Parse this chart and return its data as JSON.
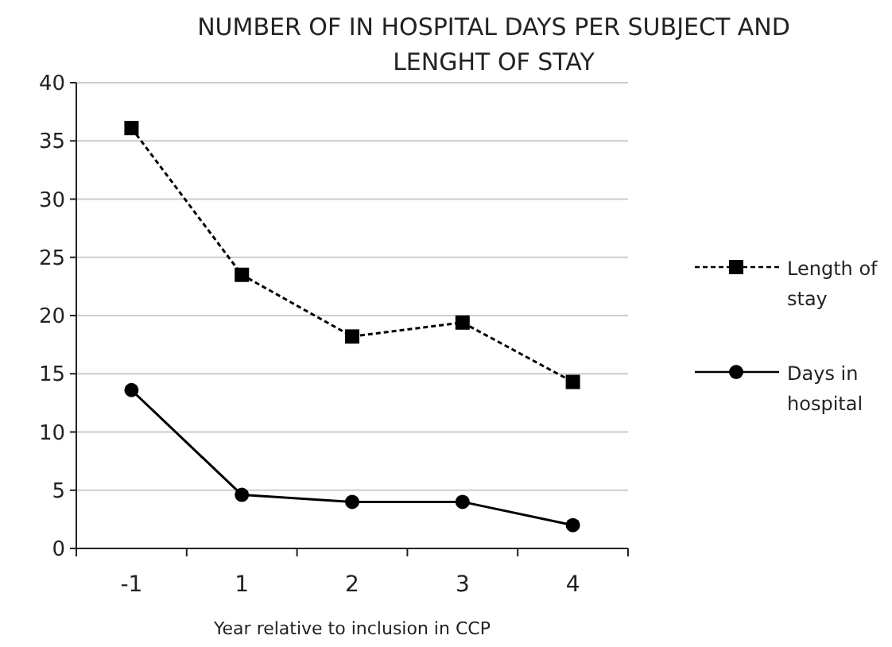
{
  "chart_data": {
    "type": "line",
    "title": "NUMBER OF IN HOSPITAL DAYS PER SUBJECT AND LENGHT OF STAY",
    "xlabel": "Year relative to inclusion in CCP",
    "categories": [
      "-1",
      "1",
      "2",
      "3",
      "4"
    ],
    "series": [
      {
        "name": "Length of stay",
        "color": "#000000",
        "values": [
          36.1,
          23.5,
          18.2,
          19.4,
          14.3
        ],
        "marker": "square",
        "line_style": "dashed"
      },
      {
        "name": "Days in hospital",
        "color": "#000000",
        "values": [
          13.6,
          4.6,
          4.0,
          4.0,
          2.0
        ],
        "marker": "circle",
        "line_style": "solid"
      }
    ],
    "ylim": [
      0,
      40
    ],
    "yticks": [
      0,
      5,
      10,
      15,
      20,
      25,
      30,
      35,
      40
    ],
    "grid": "y",
    "legend": "right"
  }
}
